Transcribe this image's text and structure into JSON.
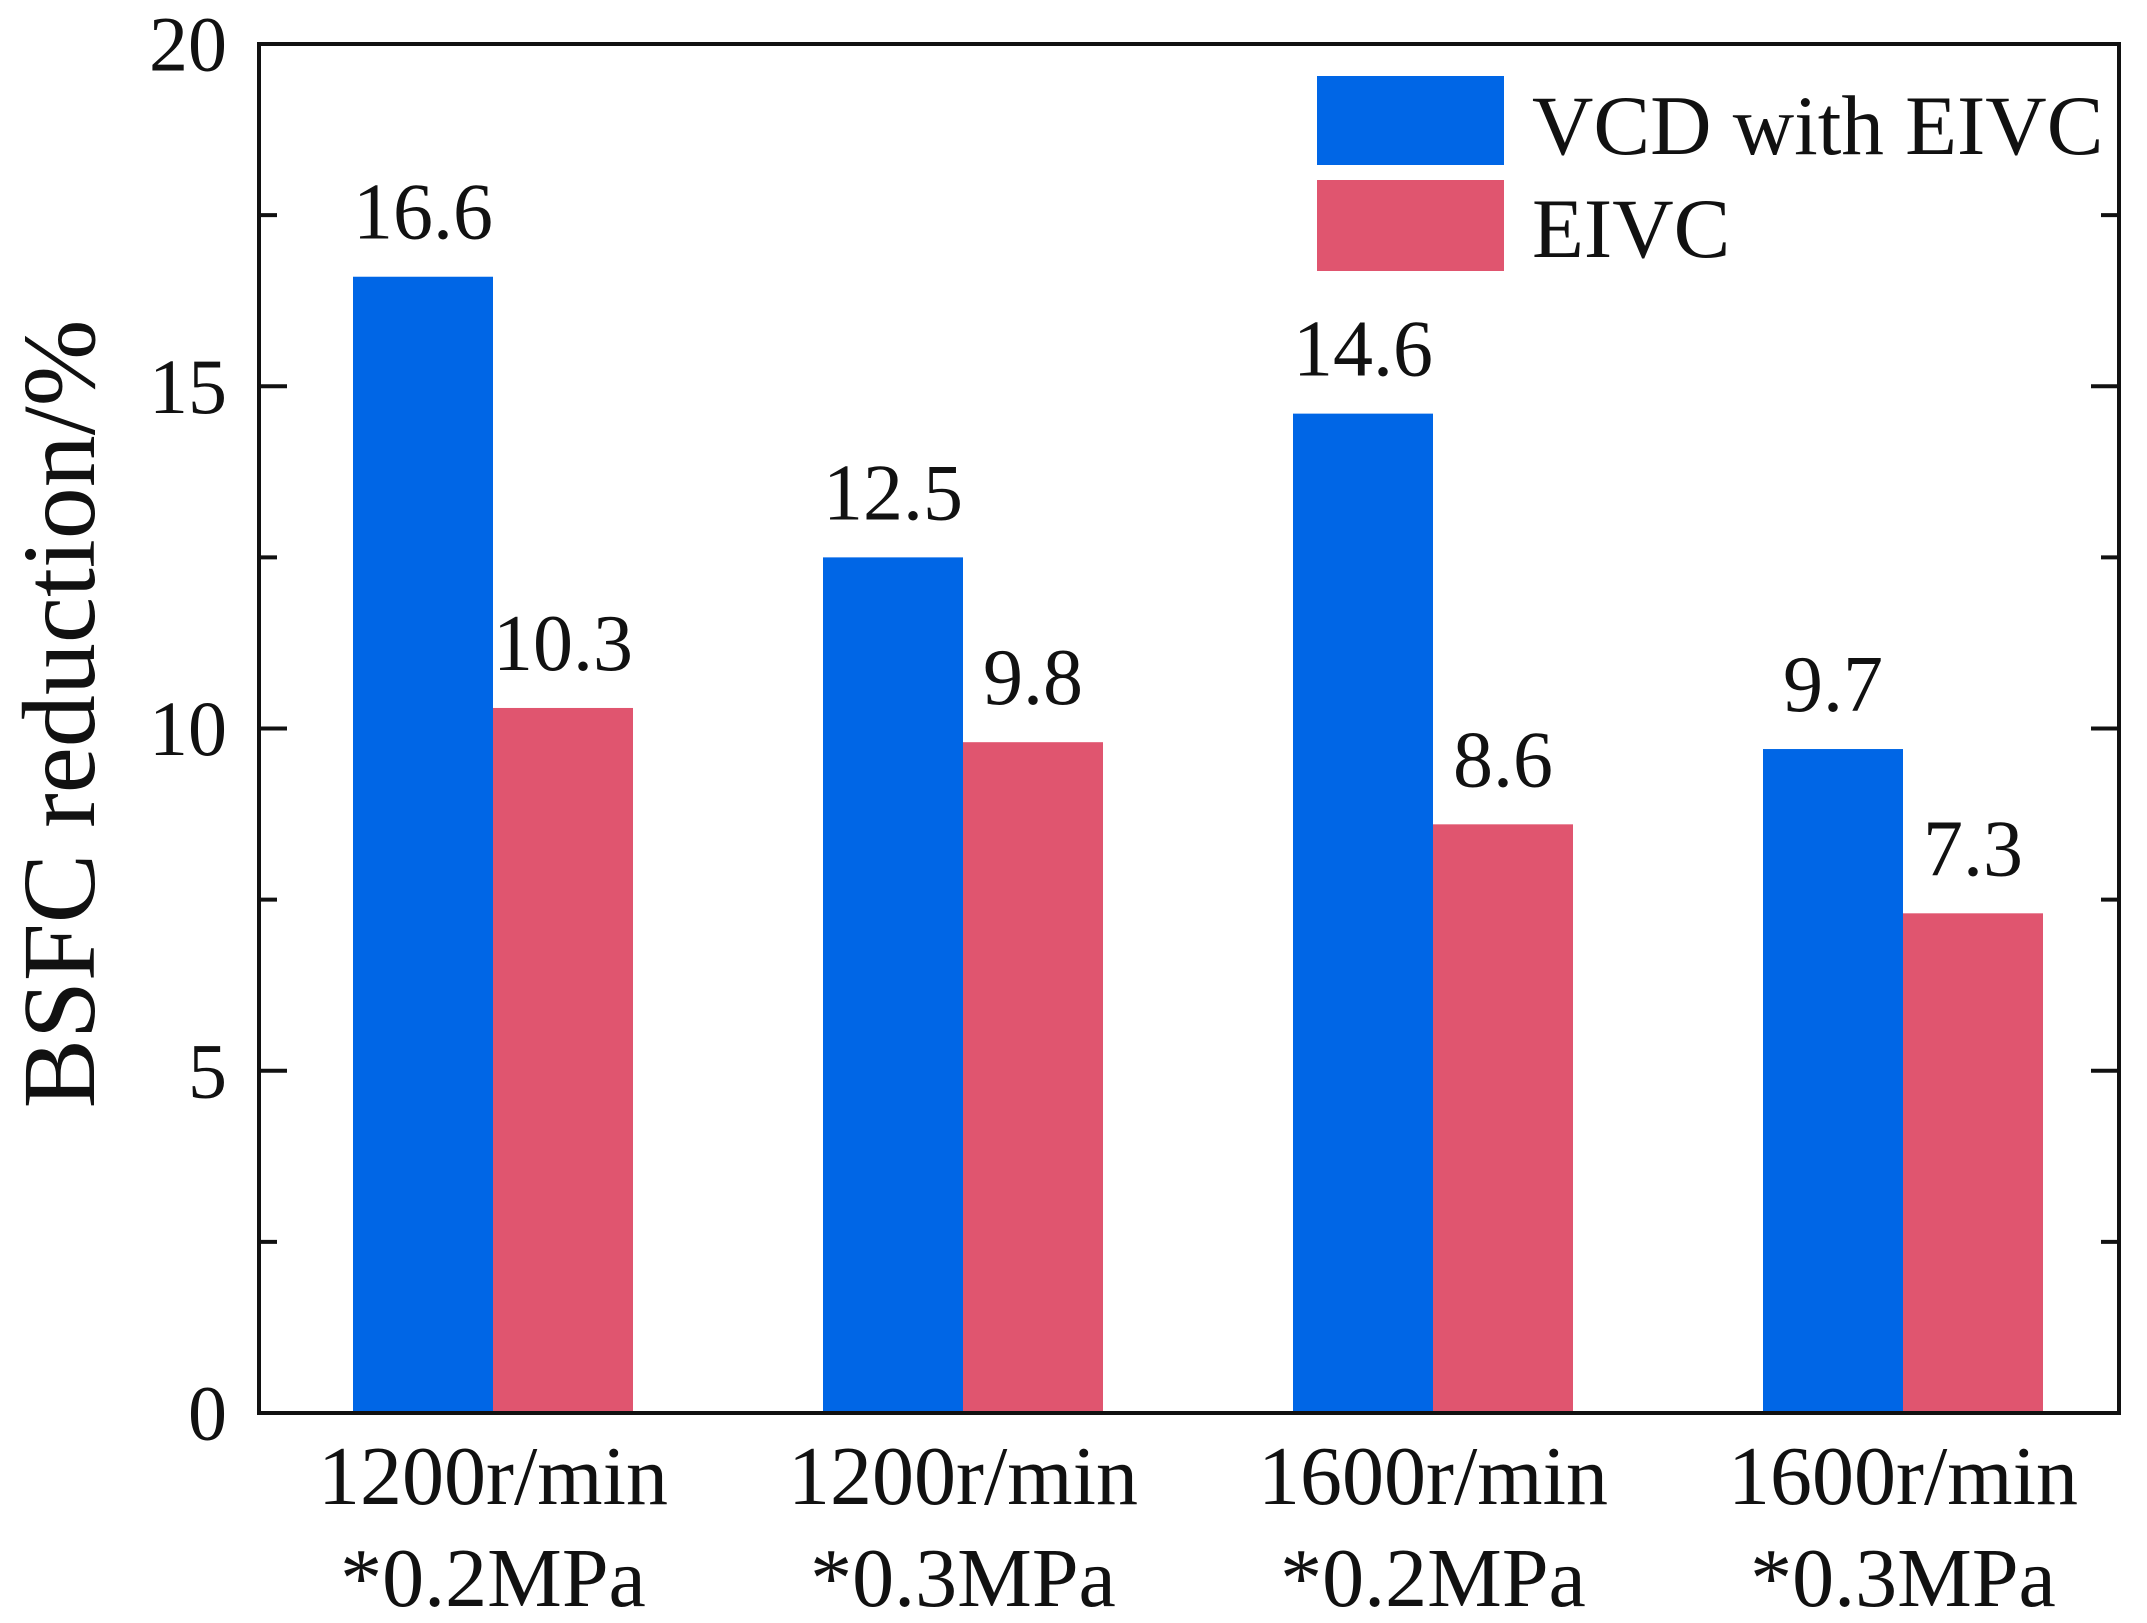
{
  "chart_data": {
    "type": "bar",
    "ylabel": "BSFC reduction/%",
    "ylim": [
      0,
      20
    ],
    "yticks": [
      0,
      5,
      10,
      15,
      20
    ],
    "grid": false,
    "legend_position": "top-right",
    "categories": [
      [
        "1200r/min",
        "*0.2MPa"
      ],
      [
        "1200r/min",
        "*0.3MPa"
      ],
      [
        "1600r/min",
        "*0.2MPa"
      ],
      [
        "1600r/min",
        "*0.3MPa"
      ]
    ],
    "series": [
      {
        "name": "VCD with EIVC",
        "color": "#0066E6",
        "values": [
          16.6,
          12.5,
          14.6,
          9.7
        ]
      },
      {
        "name": "EIVC",
        "color": "#E0556F",
        "values": [
          10.3,
          9.8,
          8.6,
          7.3
        ]
      }
    ]
  }
}
